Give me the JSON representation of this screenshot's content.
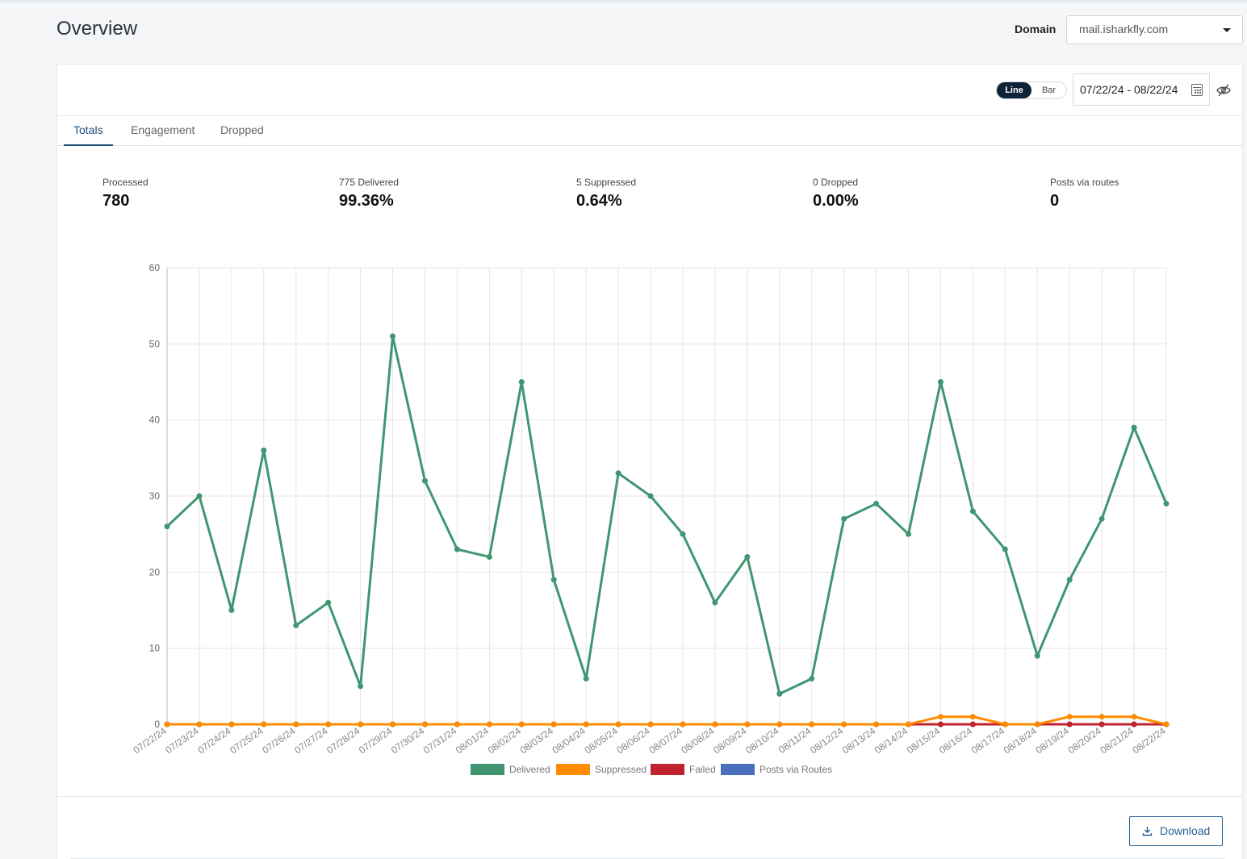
{
  "header": {
    "title": "Overview",
    "domain_label": "Domain",
    "domain_value": "mail.isharkfly.com"
  },
  "toolbar": {
    "line_label": "Line",
    "bar_label": "Bar",
    "chart_mode": "line",
    "date_range": "07/22/24 - 08/22/24"
  },
  "tabs": [
    {
      "label": "Totals",
      "active": true
    },
    {
      "label": "Engagement",
      "active": false
    },
    {
      "label": "Dropped",
      "active": false
    }
  ],
  "stats": [
    {
      "label": "Processed",
      "value": "780"
    },
    {
      "label": "775 Delivered",
      "value": "99.36%"
    },
    {
      "label": "5 Suppressed",
      "value": "0.64%"
    },
    {
      "label": "0 Dropped",
      "value": "0.00%"
    },
    {
      "label": "Posts via routes",
      "value": "0"
    }
  ],
  "footer": {
    "download_label": "Download"
  },
  "colors": {
    "delivered": "#3f9671",
    "suppressed": "#ff8c00",
    "failed": "#c0232d",
    "routes": "#4a6fbd",
    "accent": "#1d4e7a"
  },
  "chart_data": {
    "type": "line",
    "categories": [
      "07/22/24",
      "07/23/24",
      "07/24/24",
      "07/25/24",
      "07/26/24",
      "07/27/24",
      "07/28/24",
      "07/29/24",
      "07/30/24",
      "07/31/24",
      "08/01/24",
      "08/02/24",
      "08/03/24",
      "08/04/24",
      "08/05/24",
      "08/06/24",
      "08/07/24",
      "08/08/24",
      "08/09/24",
      "08/10/24",
      "08/11/24",
      "08/12/24",
      "08/13/24",
      "08/14/24",
      "08/15/24",
      "08/16/24",
      "08/17/24",
      "08/18/24",
      "08/19/24",
      "08/20/24",
      "08/21/24",
      "08/22/24"
    ],
    "series": [
      {
        "name": "Delivered",
        "color": "#3f9671",
        "values": [
          26,
          30,
          15,
          36,
          13,
          16,
          5,
          51,
          32,
          23,
          22,
          45,
          19,
          6,
          33,
          30,
          25,
          16,
          22,
          4,
          6,
          27,
          29,
          25,
          45,
          28,
          23,
          9,
          19,
          27,
          39,
          29
        ]
      },
      {
        "name": "Suppressed",
        "color": "#ff8c00",
        "values": [
          0,
          0,
          0,
          0,
          0,
          0,
          0,
          0,
          0,
          0,
          0,
          0,
          0,
          0,
          0,
          0,
          0,
          0,
          0,
          0,
          0,
          0,
          0,
          0,
          1,
          1,
          0,
          0,
          1,
          1,
          1,
          0
        ]
      },
      {
        "name": "Failed",
        "color": "#c0232d",
        "values": [
          0,
          0,
          0,
          0,
          0,
          0,
          0,
          0,
          0,
          0,
          0,
          0,
          0,
          0,
          0,
          0,
          0,
          0,
          0,
          0,
          0,
          0,
          0,
          0,
          0,
          0,
          0,
          0,
          0,
          0,
          0,
          0
        ]
      },
      {
        "name": "Posts via Routes",
        "color": "#4a6fbd",
        "values": [
          0,
          0,
          0,
          0,
          0,
          0,
          0,
          0,
          0,
          0,
          0,
          0,
          0,
          0,
          0,
          0,
          0,
          0,
          0,
          0,
          0,
          0,
          0,
          0,
          0,
          0,
          0,
          0,
          0,
          0,
          0,
          0
        ]
      }
    ],
    "ylim": [
      0,
      60
    ],
    "yticks": [
      0,
      10,
      20,
      30,
      40,
      50,
      60
    ],
    "grid": true,
    "legend_position": "bottom"
  }
}
